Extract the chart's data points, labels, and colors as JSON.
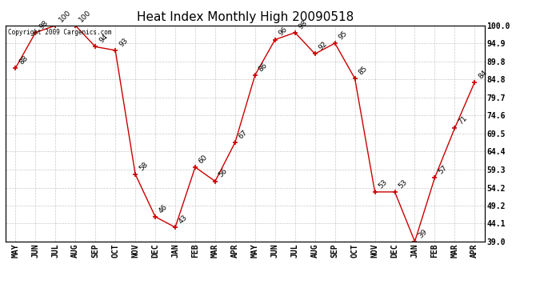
{
  "title": "Heat Index Monthly High 20090518",
  "copyright": "Copyright 2009 Cargenics.com",
  "months": [
    "MAY",
    "JUN",
    "JUL",
    "AUG",
    "SEP",
    "OCT",
    "NOV",
    "DEC",
    "JAN",
    "FEB",
    "MAR",
    "APR",
    "MAY",
    "JUN",
    "JUL",
    "AUG",
    "SEP",
    "OCT",
    "NOV",
    "DEC",
    "JAN",
    "FEB",
    "MAR",
    "APR"
  ],
  "values": [
    88,
    98,
    100,
    100,
    94,
    93,
    58,
    46,
    43,
    60,
    56,
    67,
    86,
    96,
    98,
    92,
    95,
    85,
    53,
    53,
    39,
    57,
    71,
    84
  ],
  "ylim": [
    39.0,
    100.0
  ],
  "yticks": [
    39.0,
    44.1,
    49.2,
    54.2,
    59.3,
    64.4,
    69.5,
    74.6,
    79.7,
    84.8,
    89.8,
    94.9,
    100.0
  ],
  "line_color": "#cc0000",
  "marker_color": "#cc0000",
  "grid_color": "#bbbbbb",
  "bg_color": "#ffffff",
  "title_fontsize": 11,
  "tick_fontsize": 7,
  "annotation_fontsize": 6.5
}
